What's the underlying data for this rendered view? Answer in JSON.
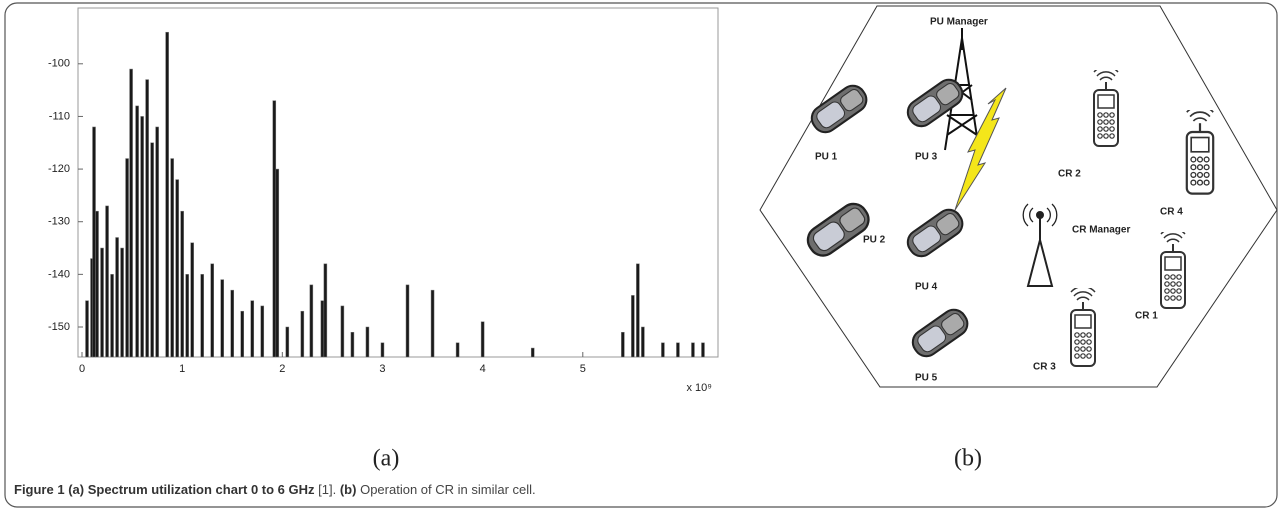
{
  "chart_data": {
    "type": "bar",
    "x": [
      0.05,
      0.1,
      0.12,
      0.15,
      0.2,
      0.25,
      0.3,
      0.35,
      0.4,
      0.45,
      0.49,
      0.55,
      0.6,
      0.65,
      0.7,
      0.75,
      0.85,
      0.9,
      0.95,
      1.0,
      1.05,
      1.1,
      1.2,
      1.3,
      1.4,
      1.5,
      1.6,
      1.7,
      1.8,
      1.92,
      1.95,
      2.05,
      2.2,
      2.29,
      2.4,
      2.43,
      2.6,
      2.7,
      2.85,
      3.0,
      3.25,
      3.5,
      3.75,
      4.0,
      4.5,
      5.4,
      5.5,
      5.55,
      5.6,
      5.8,
      5.95,
      6.1,
      6.2
    ],
    "values": [
      -145,
      -137,
      -112,
      -128,
      -135,
      -127,
      -140,
      -133,
      -135,
      -118,
      -101,
      -108,
      -110,
      -103,
      -115,
      -112,
      -94,
      -118,
      -122,
      -128,
      -140,
      -134,
      -140,
      -138,
      -141,
      -143,
      -147,
      -145,
      -146,
      -107,
      -120,
      -150,
      -147,
      -142,
      -145,
      -138,
      -146,
      -151,
      -150,
      -153,
      -142,
      -143,
      -153,
      -149,
      -154,
      -151,
      -144,
      -138,
      -150,
      -153,
      -153,
      -153,
      -153
    ],
    "color": "#1a1a1a",
    "xlim": [
      -0.04,
      6.35
    ],
    "xticks": [
      0,
      1,
      2,
      3,
      4,
      5
    ],
    "x_multiplier": "x 10⁹",
    "ylim": [
      -155.7,
      -89.4
    ],
    "yticks": [
      -150,
      -140,
      -130,
      -120,
      -110,
      -100
    ]
  },
  "panel_labels": [
    "(a)",
    "(b)"
  ],
  "diagram": {
    "nodes": [
      {
        "label": "PU Manager"
      },
      {
        "label": "PU 1"
      },
      {
        "label": "PU 2"
      },
      {
        "label": "PU 3"
      },
      {
        "label": "PU 4"
      },
      {
        "label": "PU 5"
      },
      {
        "label": "CR Manager"
      },
      {
        "label": "CR 1"
      },
      {
        "label": "CR 2"
      },
      {
        "label": "CR 3"
      },
      {
        "label": "CR 4"
      }
    ]
  },
  "caption": {
    "parts": [
      "Figure 1",
      "(a) Spectrum utilization chart 0 to 6 GHz",
      "[1].",
      "(b)",
      "Operation of CR in similar cell."
    ]
  }
}
